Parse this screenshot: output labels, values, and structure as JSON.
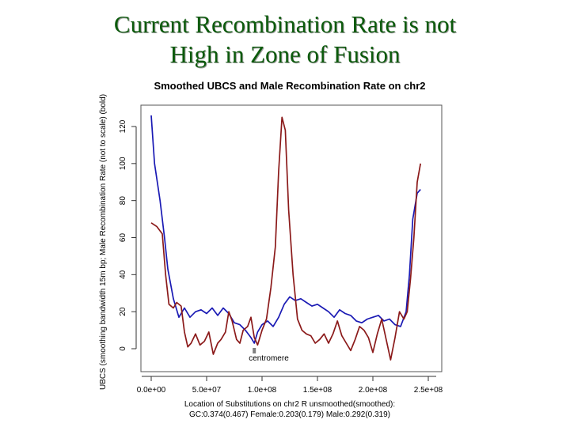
{
  "slide": {
    "title_line1": "Current Recombination Rate is not",
    "title_line2": "High in Zone of Fusion"
  },
  "colors": {
    "title": "#0b5a0b",
    "ubcs_series": "#1a1ab4",
    "male_rate_series": "#8b1a1a",
    "centromere_marker": "#808080"
  },
  "chart_data": {
    "type": "line",
    "title": "Smoothed UBCS and Male Recombination Rate on chr2",
    "ylabel": "UBCS (smoothing bandwidth 15m bp; Male Recombination Rate (not to scale) (bold)",
    "xlabel_lines": [
      "Location of Substitutions on chr2    R unsmoothed(smoothed):",
      "GC:0.374(0.467)   Female:0.203(0.179)   Male:0.292(0.319)"
    ],
    "xlim": [
      0,
      250000000
    ],
    "ylim": [
      -6,
      127
    ],
    "x_ticks": [
      {
        "value": 0,
        "label": "0.0e+00"
      },
      {
        "value": 50000000,
        "label": "5.0e+07"
      },
      {
        "value": 100000000,
        "label": "1.0e+08"
      },
      {
        "value": 150000000,
        "label": "1.5e+08"
      },
      {
        "value": 200000000,
        "label": "2.0e+08"
      },
      {
        "value": 250000000,
        "label": "2.5e+08"
      }
    ],
    "y_ticks": [
      {
        "value": 0,
        "label": "0"
      },
      {
        "value": 20,
        "label": "20"
      },
      {
        "value": 40,
        "label": "40"
      },
      {
        "value": 60,
        "label": "60"
      },
      {
        "value": 80,
        "label": "80"
      },
      {
        "value": 100,
        "label": "100"
      },
      {
        "value": 120,
        "label": "120"
      }
    ],
    "annotations": [
      {
        "text": "centromere",
        "x": 93000000,
        "y": 0
      }
    ],
    "series": [
      {
        "color": "#1a1ab4",
        "x": [
          0,
          3000000,
          8000000,
          12000000,
          15000000,
          20000000,
          25000000,
          30000000,
          35000000,
          40000000,
          45000000,
          50000000,
          55000000,
          60000000,
          65000000,
          70000000,
          75000000,
          80000000,
          85000000,
          90000000,
          93000000,
          96000000,
          100000000,
          105000000,
          110000000,
          115000000,
          120000000,
          125000000,
          130000000,
          135000000,
          140000000,
          145000000,
          150000000,
          155000000,
          160000000,
          165000000,
          170000000,
          175000000,
          180000000,
          185000000,
          190000000,
          195000000,
          200000000,
          205000000,
          210000000,
          215000000,
          220000000,
          225000000,
          230000000,
          233000000,
          236000000,
          240000000,
          243000000
        ],
        "y": [
          126,
          100,
          80,
          60,
          43,
          27,
          17,
          22,
          17,
          20,
          21,
          19,
          22,
          18,
          22,
          19,
          14,
          13,
          10,
          6,
          3,
          9,
          13,
          15,
          12,
          17,
          24,
          28,
          26,
          27,
          25,
          23,
          24,
          22,
          20,
          17,
          21,
          19,
          18,
          15,
          14,
          16,
          17,
          18,
          15,
          16,
          13,
          12,
          20,
          40,
          70,
          84,
          86
        ]
      },
      {
        "color": "#8b1a1a",
        "x": [
          0,
          5000000,
          10000000,
          13000000,
          16000000,
          20000000,
          23000000,
          27000000,
          30000000,
          33000000,
          36000000,
          40000000,
          44000000,
          48000000,
          52000000,
          56000000,
          60000000,
          63000000,
          67000000,
          70000000,
          73000000,
          77000000,
          80000000,
          83000000,
          87000000,
          90000000,
          93000000,
          96000000,
          100000000,
          104000000,
          108000000,
          112000000,
          115000000,
          118000000,
          121000000,
          124000000,
          128000000,
          132000000,
          136000000,
          140000000,
          144000000,
          148000000,
          152000000,
          156000000,
          160000000,
          164000000,
          168000000,
          172000000,
          176000000,
          180000000,
          184000000,
          188000000,
          192000000,
          196000000,
          200000000,
          204000000,
          208000000,
          212000000,
          216000000,
          220000000,
          224000000,
          228000000,
          231000000,
          234000000,
          237000000,
          240000000,
          243000000
        ],
        "y": [
          68,
          66,
          62,
          40,
          24,
          22,
          25,
          23,
          9,
          1,
          3,
          8,
          2,
          4,
          9,
          -3,
          3,
          5,
          9,
          20,
          15,
          5,
          3,
          10,
          12,
          17,
          6,
          2,
          10,
          16,
          33,
          55,
          96,
          125,
          118,
          75,
          40,
          16,
          10,
          8,
          7,
          3,
          5,
          8,
          3,
          8,
          15,
          7,
          3,
          -1,
          5,
          12,
          10,
          6,
          -2,
          8,
          16,
          5,
          -6,
          6,
          20,
          16,
          20,
          38,
          60,
          90,
          100
        ]
      }
    ]
  }
}
